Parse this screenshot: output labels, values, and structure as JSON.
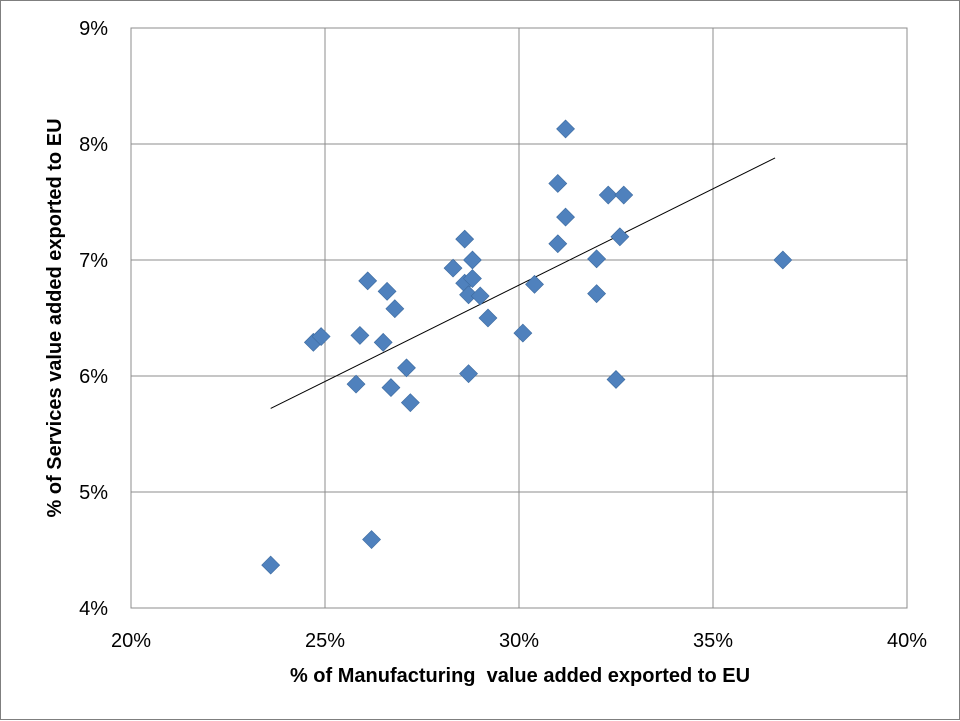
{
  "chart_data": {
    "type": "scatter",
    "xlabel": "% of Manufacturing  value added exported to EU",
    "ylabel": "% of Services value added exported to EU",
    "xlim": [
      20,
      40
    ],
    "ylim": [
      4,
      9
    ],
    "x_ticks": [
      20,
      25,
      30,
      35,
      40
    ],
    "y_ticks": [
      4,
      5,
      6,
      7,
      8,
      9
    ],
    "x_tick_labels": [
      "20%",
      "25%",
      "30%",
      "35%",
      "40%"
    ],
    "y_tick_labels": [
      "4%",
      "5%",
      "6%",
      "7%",
      "8%",
      "9%"
    ],
    "grid": true,
    "legend": "none",
    "series": [
      {
        "marker": "diamond",
        "color": "#4f81bd",
        "points": [
          [
            23.6,
            4.37
          ],
          [
            24.7,
            6.29
          ],
          [
            24.9,
            6.34
          ],
          [
            25.8,
            5.93
          ],
          [
            25.9,
            6.35
          ],
          [
            26.1,
            6.82
          ],
          [
            26.2,
            4.59
          ],
          [
            26.5,
            6.29
          ],
          [
            26.6,
            6.73
          ],
          [
            26.7,
            5.9
          ],
          [
            26.8,
            6.58
          ],
          [
            27.1,
            6.07
          ],
          [
            27.2,
            5.77
          ],
          [
            28.3,
            6.93
          ],
          [
            28.6,
            6.8
          ],
          [
            28.6,
            7.18
          ],
          [
            28.7,
            6.7
          ],
          [
            28.7,
            6.02
          ],
          [
            28.8,
            6.84
          ],
          [
            28.8,
            7.0
          ],
          [
            29.0,
            6.69
          ],
          [
            29.2,
            6.5
          ],
          [
            30.1,
            6.37
          ],
          [
            30.4,
            6.79
          ],
          [
            31.0,
            7.66
          ],
          [
            31.0,
            7.14
          ],
          [
            31.2,
            7.37
          ],
          [
            31.2,
            8.13
          ],
          [
            32.0,
            7.01
          ],
          [
            32.0,
            6.71
          ],
          [
            32.3,
            7.56
          ],
          [
            32.5,
            5.97
          ],
          [
            32.6,
            7.2
          ],
          [
            32.7,
            7.56
          ],
          [
            36.8,
            7.0
          ]
        ]
      }
    ],
    "trendline": {
      "x": [
        23.6,
        36.6
      ],
      "y": [
        5.72,
        7.88
      ],
      "color": "#000000"
    }
  }
}
